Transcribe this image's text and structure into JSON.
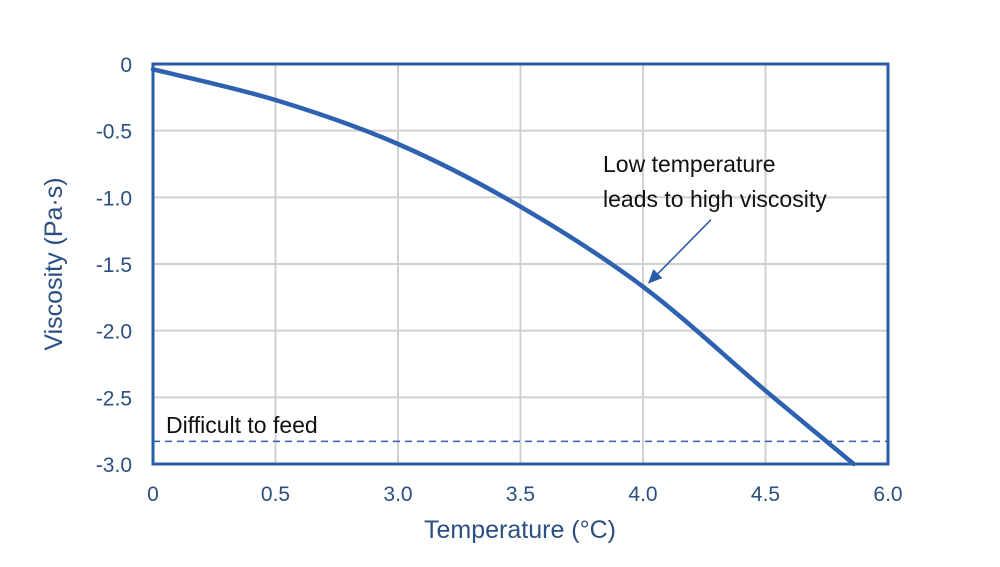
{
  "chart_data": {
    "type": "line",
    "xlabel": "Temperature (°C)",
    "ylabel": "Viscosity (Pa·s)",
    "x_ticks": [
      0,
      0.5,
      3.0,
      3.5,
      4.0,
      4.5,
      6.0
    ],
    "x_tick_labels": [
      "0",
      "0.5",
      "3.0",
      "3.5",
      "4.0",
      "4.5",
      "6.0"
    ],
    "y_ticks": [
      0,
      -0.5,
      -1.0,
      -1.5,
      -2.0,
      -2.5,
      -3.0
    ],
    "y_tick_labels": [
      "0",
      "-0.5",
      "-1.0",
      "-1.5",
      "-2.0",
      "-2.5",
      "-3.0"
    ],
    "ylim": [
      -3.0,
      0
    ],
    "grid": true,
    "series": [
      {
        "x": [
          0,
          0.5,
          3.0,
          3.5,
          4.0,
          4.5,
          5.58
        ],
        "y": [
          -0.04,
          -0.27,
          -0.6,
          -1.07,
          -1.67,
          -2.45,
          -3.0
        ]
      }
    ],
    "threshold": {
      "y": -2.83,
      "label": "Difficult to feed",
      "style": "dashed"
    },
    "annotation": {
      "lines": [
        "Low temperature",
        "leads to high viscosity"
      ],
      "points_to": {
        "x": 4.0,
        "y": -1.67
      }
    },
    "colors": {
      "axis": "#2a5ea8",
      "line": "#2e62b0",
      "grid": "#d0d0d0",
      "tick_text": "#2a4f80",
      "annotation_text": "#111111"
    }
  }
}
